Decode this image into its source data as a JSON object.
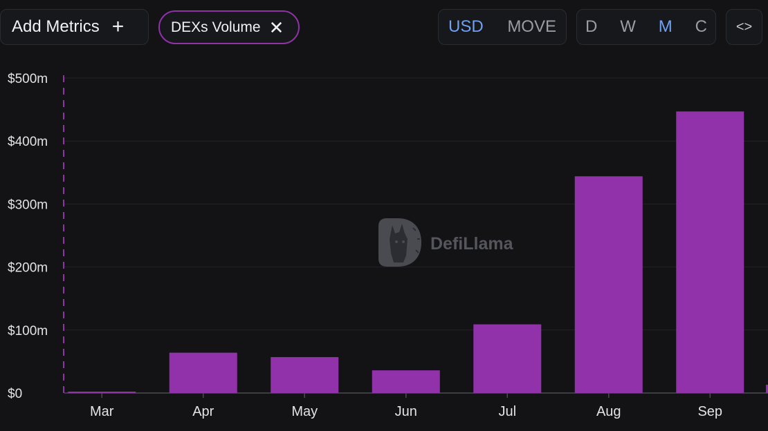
{
  "toolbar": {
    "add_metrics_label": "Add Metrics",
    "add_metrics_icon": "plus-icon",
    "metric_chip_label": "DEXs Volume",
    "metric_chip_icon": "close-icon",
    "currency_options": [
      "USD",
      "MOVE"
    ],
    "currency_selected": "USD",
    "period_options": [
      "D",
      "W",
      "M",
      "C"
    ],
    "period_selected": "M",
    "embed_icon": "code-brackets-icon",
    "embed_glyph": "<>"
  },
  "watermark": {
    "text": "DefiLlama",
    "icon": "llama-logo-icon"
  },
  "colors": {
    "accent": "#8e33a8",
    "bar": "#9232aa",
    "active": "#6fa0f2",
    "background": "#131316"
  },
  "chart_data": {
    "type": "bar",
    "title": "DEXs Volume",
    "xlabel": "",
    "ylabel": "",
    "categories": [
      "Mar",
      "Apr",
      "May",
      "Jun",
      "Jul",
      "Aug",
      "Sep"
    ],
    "values": [
      1,
      64,
      57,
      36,
      109,
      344,
      447
    ],
    "unit": "$m",
    "ylim": [
      0,
      500
    ],
    "yticks": [
      0,
      100,
      200,
      300,
      400,
      500
    ],
    "ytick_labels": [
      "$0",
      "$100m",
      "$200m",
      "$300m",
      "$400m",
      "$500m"
    ],
    "grid": true,
    "legend": "none"
  }
}
